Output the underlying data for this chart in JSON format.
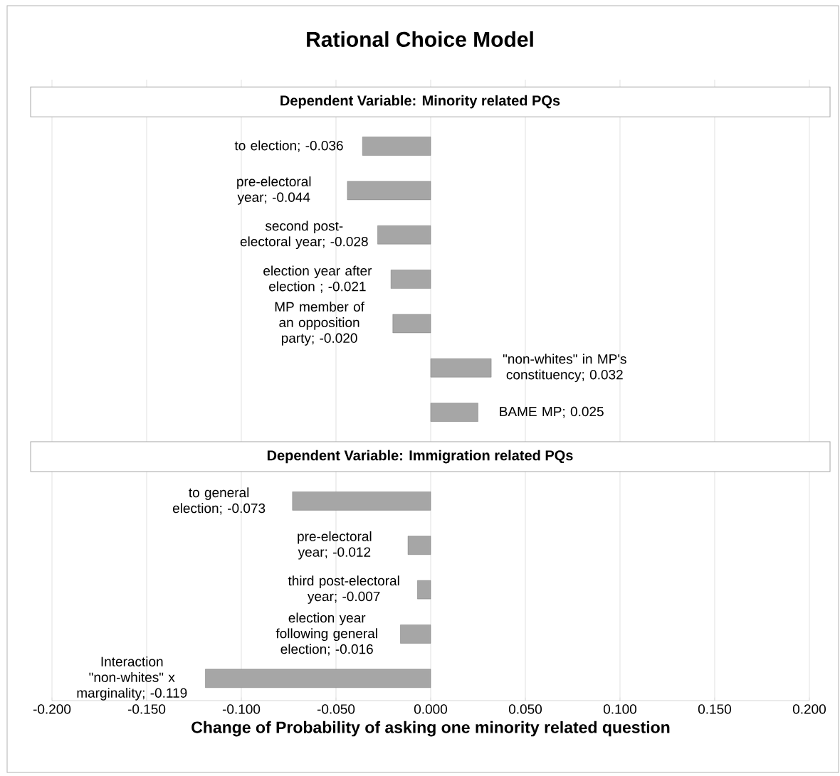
{
  "chart_data": {
    "type": "bar",
    "orientation": "horizontal",
    "title": "Rational Choice Model",
    "xlabel": "Change of Probability of asking one minority related question",
    "categories": [
      null,
      null,
      null,
      null,
      null,
      null,
      null,
      null,
      null,
      null,
      null,
      null,
      null,
      null
    ],
    "values": [
      null,
      -0.036,
      -0.044,
      -0.028,
      -0.021,
      -0.02,
      0.032,
      0.025,
      null,
      -0.073,
      -0.012,
      -0.007,
      -0.016,
      -0.119
    ],
    "value_labels": [
      null,
      "to election; -0.036",
      "pre-electoral year; -0.044",
      "second post-electoral year; -0.028",
      "election year after election ; -0.021",
      "MP member of an opposition party; -0.020",
      "\"non-whites\" in MP's constituency; 0.032",
      "BAME MP; 0.025",
      null,
      "to general election; -0.073",
      "pre-electoral year; -0.012",
      "third post-electoral year; -0.007",
      "election year following general election; -0.016",
      "Interaction \"non-whites\" x marginality; -0.119"
    ],
    "color": "#a6a6a6",
    "annotations": [
      "Dependent Variable: Minority related PQs",
      "Dependent Variable: Immigration related PQs"
    ],
    "xlim": [
      -0.2,
      0.2
    ],
    "xticks": [
      {
        "value": -0.2,
        "label": "-0.200"
      },
      {
        "value": -0.15,
        "label": "-0.150"
      },
      {
        "value": -0.1,
        "label": "-0.100"
      },
      {
        "value": -0.05,
        "label": "-0.050"
      },
      {
        "value": 0,
        "label": "0.000"
      },
      {
        "value": 0.05,
        "label": "0.050"
      },
      {
        "value": 0.1,
        "label": "0.100"
      },
      {
        "value": 0.15,
        "label": "0.150"
      },
      {
        "value": 0.2,
        "label": "0.200"
      }
    ],
    "grid": "x",
    "tick_labels": "x"
  }
}
